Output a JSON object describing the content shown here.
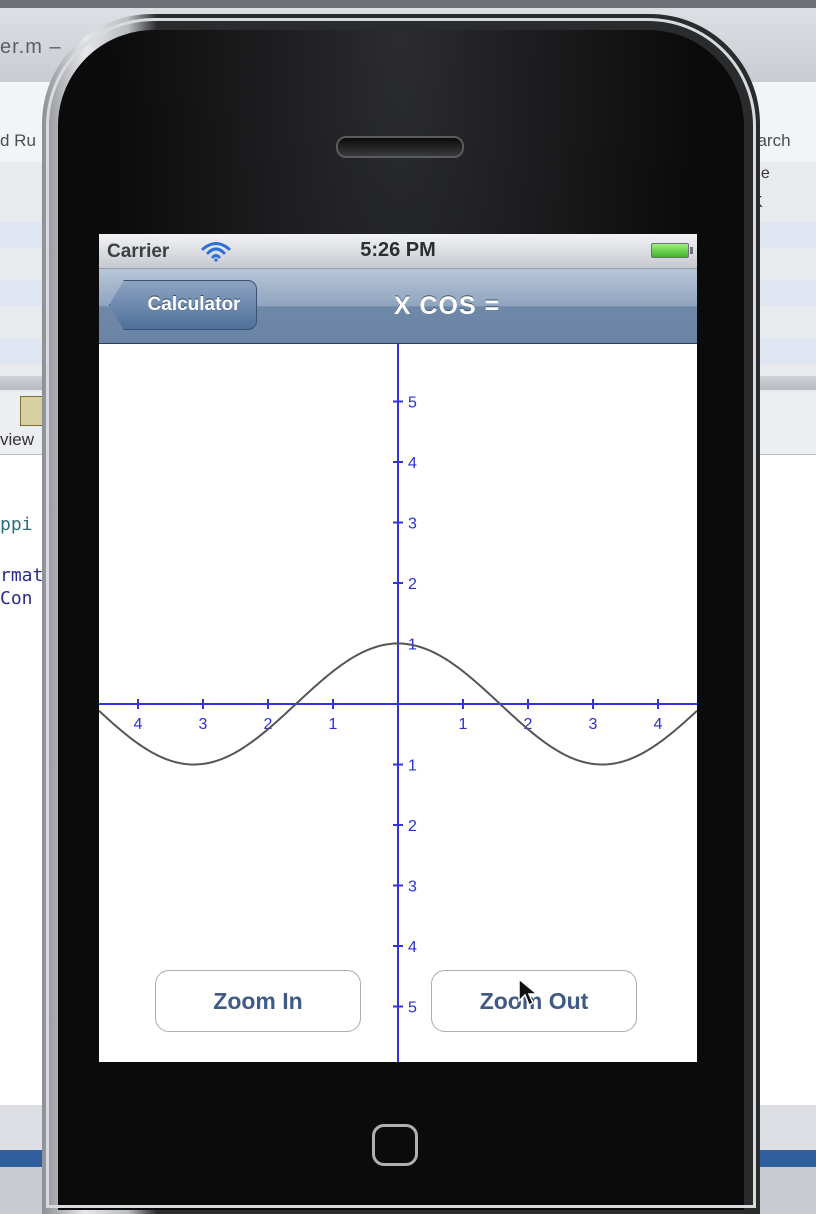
{
  "background_window": {
    "title_fragment": "er.m –",
    "toolbar_left_label": "d Ru",
    "toolbar_right_label": "earch",
    "column_code": "de",
    "column_size": "K",
    "view_label": "view",
    "code_lines": [
      "ppi",
      "rmat",
      "Con"
    ]
  },
  "status_bar": {
    "carrier": "Carrier",
    "time": "5:26 PM"
  },
  "nav_bar": {
    "back_label": "Calculator",
    "title": "X COS ="
  },
  "graph": {
    "axis_color": "#3333e0",
    "curve_color": "#555555",
    "x_tick_labels_left": [
      "4",
      "3",
      "2",
      "1"
    ],
    "x_tick_labels_right": [
      "1",
      "2",
      "3",
      "4"
    ],
    "y_tick_labels_up": [
      "1",
      "2",
      "3",
      "4",
      "5"
    ],
    "y_tick_labels_down": [
      "1",
      "2",
      "3",
      "4",
      "5"
    ]
  },
  "buttons": {
    "zoom_in": "Zoom In",
    "zoom_out": "Zoom Out"
  }
}
